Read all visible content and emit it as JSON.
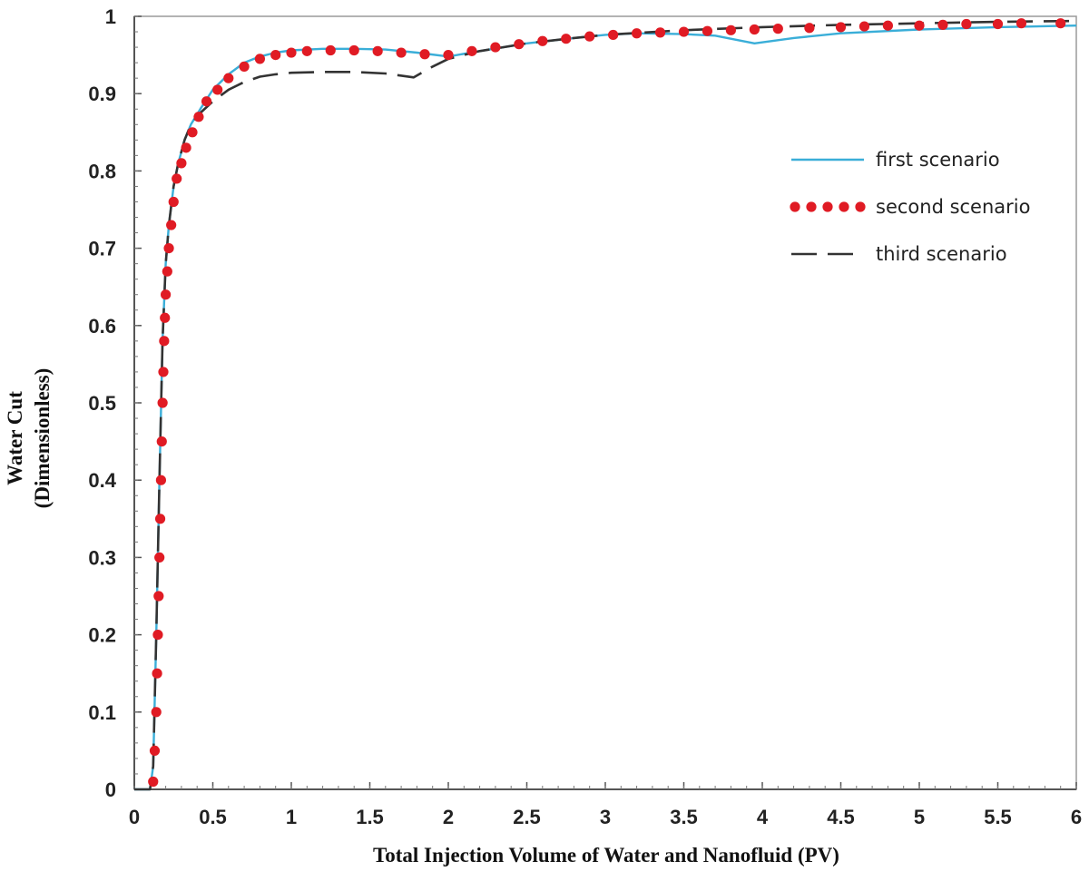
{
  "chart_data": {
    "type": "line",
    "title": "",
    "xlabel": "Total  Injection Volume of Water and Nanofluid  (PV)",
    "ylabel_lines": [
      "Water Cut",
      "(Dimensionless)"
    ],
    "xlim": [
      0,
      6
    ],
    "ylim": [
      0,
      1
    ],
    "x_ticks": [
      "0",
      "0.5",
      "1",
      "1.5",
      "2",
      "2.5",
      "3",
      "3.5",
      "4",
      "4.5",
      "5",
      "5.5",
      "6"
    ],
    "y_ticks": [
      "0",
      "0.1",
      "0.2",
      "0.3",
      "0.4",
      "0.5",
      "0.6",
      "0.7",
      "0.8",
      "0.9",
      "1"
    ],
    "grid": false,
    "legend_position": "upper-right",
    "series": [
      {
        "name": "first scenario",
        "style": "solid",
        "color": "#3aaed8",
        "x": [
          0.0,
          0.1,
          0.12,
          0.14,
          0.16,
          0.18,
          0.2,
          0.22,
          0.25,
          0.28,
          0.32,
          0.36,
          0.42,
          0.5,
          0.6,
          0.7,
          0.8,
          0.9,
          1.0,
          1.2,
          1.4,
          1.6,
          1.8,
          2.0,
          2.2,
          2.5,
          2.8,
          3.0,
          3.2,
          3.5,
          3.7,
          3.95,
          4.2,
          4.5,
          5.0,
          5.5,
          6.0
        ],
        "y": [
          0.0,
          0.0,
          0.03,
          0.2,
          0.4,
          0.58,
          0.68,
          0.73,
          0.78,
          0.81,
          0.84,
          0.86,
          0.88,
          0.905,
          0.925,
          0.94,
          0.948,
          0.953,
          0.956,
          0.958,
          0.958,
          0.957,
          0.953,
          0.948,
          0.955,
          0.965,
          0.972,
          0.976,
          0.978,
          0.977,
          0.975,
          0.965,
          0.972,
          0.978,
          0.983,
          0.986,
          0.988
        ]
      },
      {
        "name": "second scenario",
        "style": "dotted",
        "color": "#e01b24",
        "x": [
          0.12,
          0.13,
          0.14,
          0.145,
          0.15,
          0.155,
          0.16,
          0.165,
          0.17,
          0.175,
          0.18,
          0.185,
          0.19,
          0.195,
          0.2,
          0.21,
          0.22,
          0.235,
          0.25,
          0.27,
          0.3,
          0.33,
          0.37,
          0.41,
          0.46,
          0.53,
          0.6,
          0.7,
          0.8,
          0.9,
          1.0,
          1.1,
          1.25,
          1.4,
          1.55,
          1.7,
          1.85,
          2.0,
          2.15,
          2.3,
          2.45,
          2.6,
          2.75,
          2.9,
          3.05,
          3.2,
          3.35,
          3.5,
          3.65,
          3.8,
          3.95,
          4.1,
          4.3,
          4.5,
          4.65,
          4.8,
          5.0,
          5.15,
          5.3,
          5.5,
          5.65,
          5.9
        ],
        "y": [
          0.01,
          0.05,
          0.1,
          0.15,
          0.2,
          0.25,
          0.3,
          0.35,
          0.4,
          0.45,
          0.5,
          0.54,
          0.58,
          0.61,
          0.64,
          0.67,
          0.7,
          0.73,
          0.76,
          0.79,
          0.81,
          0.83,
          0.85,
          0.87,
          0.89,
          0.905,
          0.92,
          0.935,
          0.945,
          0.95,
          0.953,
          0.955,
          0.956,
          0.956,
          0.955,
          0.953,
          0.951,
          0.95,
          0.955,
          0.96,
          0.964,
          0.968,
          0.971,
          0.974,
          0.976,
          0.978,
          0.979,
          0.98,
          0.981,
          0.982,
          0.983,
          0.984,
          0.985,
          0.986,
          0.987,
          0.988,
          0.988,
          0.989,
          0.99,
          0.99,
          0.991,
          0.991
        ]
      },
      {
        "name": "third scenario",
        "style": "dashed",
        "color": "#333333",
        "x": [
          0.0,
          0.1,
          0.12,
          0.14,
          0.16,
          0.18,
          0.2,
          0.22,
          0.25,
          0.28,
          0.32,
          0.36,
          0.42,
          0.5,
          0.6,
          0.7,
          0.8,
          0.9,
          1.0,
          1.2,
          1.4,
          1.6,
          1.78,
          1.9,
          2.0,
          2.2,
          2.5,
          2.8,
          3.0,
          3.5,
          4.0,
          4.5,
          5.0,
          5.5,
          6.0
        ],
        "y": [
          0.0,
          0.0,
          0.03,
          0.2,
          0.4,
          0.58,
          0.68,
          0.73,
          0.78,
          0.81,
          0.84,
          0.86,
          0.875,
          0.89,
          0.905,
          0.915,
          0.922,
          0.925,
          0.927,
          0.928,
          0.928,
          0.926,
          0.921,
          0.935,
          0.945,
          0.955,
          0.965,
          0.972,
          0.976,
          0.982,
          0.986,
          0.989,
          0.991,
          0.993,
          0.994
        ]
      }
    ]
  }
}
